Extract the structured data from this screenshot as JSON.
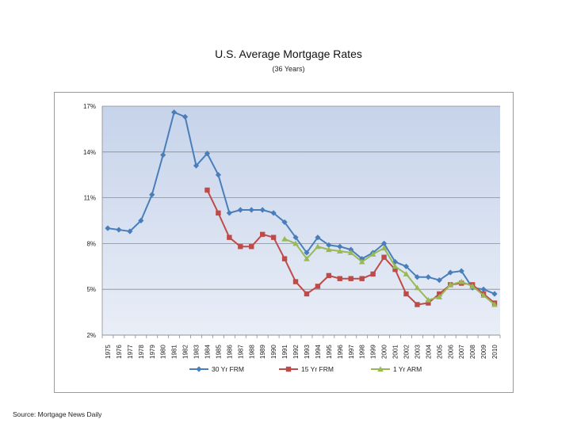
{
  "title": "U.S. Average Mortgage Rates",
  "subtitle": "(36 Years)",
  "source": "Source: Mortgage News Daily",
  "chart_data": {
    "type": "line",
    "title": "U.S. Average Mortgage Rates",
    "subtitle": "(36 Years)",
    "xlabel": "",
    "ylabel": "",
    "ylim": [
      2,
      17
    ],
    "yticks": [
      2,
      5,
      8,
      11,
      14,
      17
    ],
    "ytick_labels": [
      "2%",
      "5%",
      "8%",
      "11%",
      "14%",
      "17%"
    ],
    "grid": true,
    "legend": "bottom",
    "x": [
      1975,
      1976,
      1977,
      1978,
      1979,
      1980,
      1981,
      1982,
      1983,
      1984,
      1985,
      1986,
      1987,
      1988,
      1989,
      1990,
      1991,
      1992,
      1993,
      1994,
      1995,
      1996,
      1997,
      1998,
      1999,
      2000,
      2001,
      2002,
      2003,
      2004,
      2005,
      2006,
      2007,
      2008,
      2009,
      2010
    ],
    "xtick_labels": [
      "1975",
      "1976",
      "1977",
      "1978",
      "1979",
      "1980",
      "1981",
      "1982",
      "1983",
      "1984",
      "1985",
      "1986",
      "1987",
      "1988",
      "1989",
      "1990",
      "1991",
      "1992",
      "1993",
      "1994",
      "1995",
      "1996",
      "1997",
      "1998",
      "1999",
      "2000",
      "2001",
      "2002",
      "2003",
      "2004",
      "2005",
      "2006",
      "2007",
      "2008",
      "2009",
      "2010"
    ],
    "series": [
      {
        "name": "30 Yr FRM",
        "color": "#4a7ebb",
        "marker": "diamond",
        "values": [
          9.0,
          8.9,
          8.8,
          9.5,
          11.2,
          13.8,
          16.6,
          16.3,
          13.1,
          13.9,
          12.5,
          10.0,
          10.2,
          10.2,
          10.2,
          10.0,
          9.4,
          8.4,
          7.4,
          8.4,
          7.9,
          7.8,
          7.6,
          7.0,
          7.4,
          8.0,
          6.8,
          6.5,
          5.8,
          5.8,
          5.6,
          6.1,
          6.2,
          5.1,
          5.0,
          4.7
        ]
      },
      {
        "name": "15 Yr FRM",
        "color": "#be4b48",
        "marker": "square",
        "values": [
          null,
          null,
          null,
          null,
          null,
          null,
          null,
          null,
          null,
          11.5,
          10.0,
          8.4,
          7.8,
          7.8,
          8.6,
          8.4,
          7.0,
          5.5,
          4.7,
          5.2,
          5.9,
          5.7,
          5.7,
          5.7,
          6.0,
          7.1,
          6.3,
          4.7,
          4.0,
          4.1,
          4.7,
          5.3,
          5.4,
          5.3,
          4.7,
          4.1
        ]
      },
      {
        "name": "1 Yr ARM",
        "color": "#98b954",
        "marker": "triangle",
        "values": [
          null,
          null,
          null,
          null,
          null,
          null,
          null,
          null,
          null,
          null,
          null,
          null,
          null,
          null,
          null,
          null,
          8.3,
          8.0,
          7.0,
          7.8,
          7.6,
          7.5,
          7.4,
          6.8,
          7.3,
          7.7,
          6.5,
          6.0,
          5.1,
          4.3,
          4.5,
          5.3,
          5.5,
          5.2,
          4.6,
          4.0
        ]
      }
    ]
  }
}
